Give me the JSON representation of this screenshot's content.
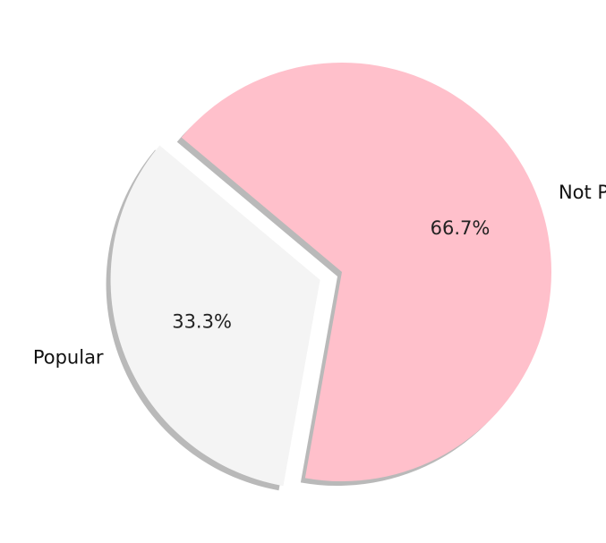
{
  "chart_data": {
    "type": "pie",
    "slices": [
      {
        "label": "Popular",
        "value": 33.3,
        "percent_label": "33.3%",
        "color": "#f4f4f4",
        "exploded": true
      },
      {
        "label": "Not Popular",
        "value": 66.7,
        "percent_label": "66.7%",
        "color": "#ffc0cb",
        "exploded": false
      }
    ],
    "shadow": true,
    "start_angle_deg": 140
  }
}
